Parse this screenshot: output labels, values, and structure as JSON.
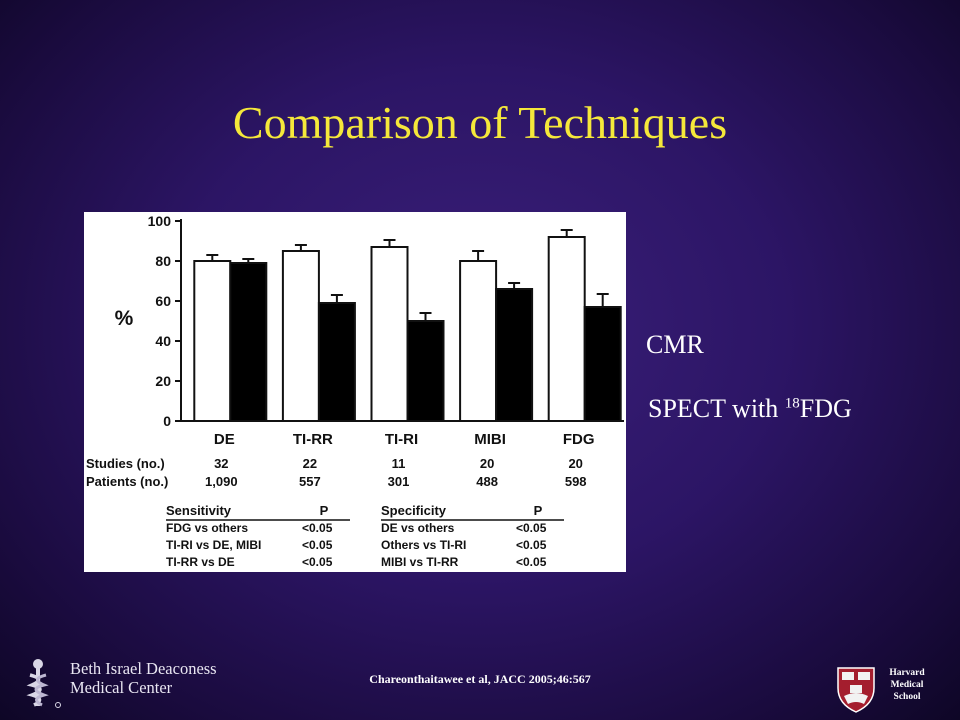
{
  "slide": {
    "title": "Comparison of Techniques",
    "annotation_cmr": "CMR",
    "annotation_spect_prefix": "SPECT with ",
    "annotation_spect_sup": "18",
    "annotation_spect_suffix": "FDG",
    "citation": "Chareonthaitawee et al, JACC 2005;46:567",
    "logo_left_line1": "Beth Israel Deaconess",
    "logo_left_line2": "Medical Center",
    "logo_right_line1": "Harvard",
    "logo_right_line2": "Medical",
    "logo_right_line3": "School",
    "colors": {
      "title": "#f5e83a",
      "text": "#ffffff",
      "background": "#2c1565"
    }
  },
  "chart_data": {
    "type": "bar",
    "categories": [
      "DE",
      "TI-RR",
      "TI-RI",
      "MIBI",
      "FDG"
    ],
    "series": [
      {
        "name": "Sensitivity",
        "color": "#ffffff",
        "values": [
          80,
          85,
          87,
          80,
          92
        ],
        "errors": [
          3,
          3,
          3.5,
          5,
          3.5
        ]
      },
      {
        "name": "Specificity",
        "color": "#000000",
        "values": [
          79,
          59,
          50,
          66,
          57
        ],
        "errors": [
          2,
          4,
          4,
          3,
          6.5
        ]
      }
    ],
    "ylabel": "%",
    "ylim": [
      0,
      100
    ],
    "yticks": [
      0,
      20,
      40,
      60,
      80,
      100
    ],
    "grid": false,
    "table": {
      "rows": [
        {
          "label": "Studies (no.)",
          "values": [
            "32",
            "22",
            "11",
            "20",
            "20"
          ]
        },
        {
          "label": "Patients (no.)",
          "values": [
            "1,090",
            "557",
            "301",
            "488",
            "598"
          ]
        }
      ]
    },
    "stats": {
      "left_header": [
        "Sensitivity",
        "P"
      ],
      "left_rows": [
        [
          "FDG vs others",
          "<0.05"
        ],
        [
          "TI-RI vs DE, MIBI",
          "<0.05"
        ],
        [
          "TI-RR vs DE",
          "<0.05"
        ]
      ],
      "right_header": [
        "Specificity",
        "P"
      ],
      "right_rows": [
        [
          "DE vs others",
          "<0.05"
        ],
        [
          "Others vs TI-RI",
          "<0.05"
        ],
        [
          "MIBI vs TI-RR",
          "<0.05"
        ]
      ]
    }
  }
}
